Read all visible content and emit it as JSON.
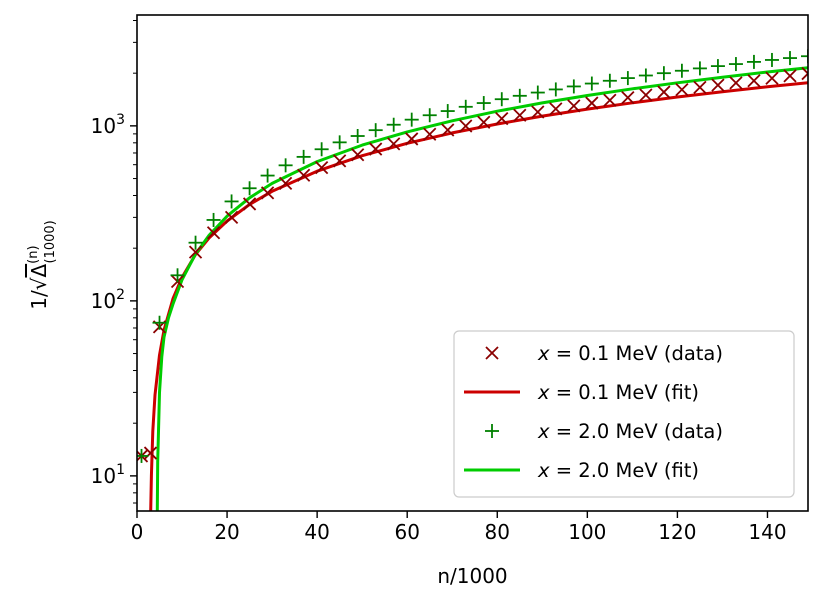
{
  "chart_data": {
    "type": "scatter",
    "x_scale": "linear",
    "y_scale": "log",
    "xlim": [
      0,
      149
    ],
    "ylim": [
      6.3,
      4300
    ],
    "xlabel": "n/1000",
    "ylabel": "1/√Δ(1000)(n)",
    "ylabel_parts": {
      "prefix": "1/",
      "symbol": "Δ",
      "sup": "(n)",
      "sub": "(1000)"
    },
    "x_ticks": [
      0,
      20,
      40,
      60,
      80,
      100,
      120,
      140
    ],
    "y_ticks": [
      {
        "value": 10,
        "base": "10",
        "exp": "1"
      },
      {
        "value": 100,
        "base": "10",
        "exp": "2"
      },
      {
        "value": 1000,
        "base": "10",
        "exp": "3"
      }
    ],
    "grid": false,
    "legend_position": "lower right",
    "series": [
      {
        "name": "x = 0.1 MeV (data)",
        "label_var": "x",
        "label_rest": " = 0.1 MeV (data)",
        "kind": "markers",
        "marker": "x",
        "color": "#8b0000",
        "x": [
          1,
          3,
          5,
          9,
          13,
          17,
          21,
          25,
          29,
          33,
          37,
          41,
          45,
          49,
          53,
          57,
          61,
          65,
          69,
          73,
          77,
          81,
          85,
          89,
          93,
          97,
          101,
          105,
          109,
          113,
          117,
          121,
          125,
          129,
          133,
          137,
          141,
          145,
          149
        ],
        "y": [
          13,
          13.5,
          71,
          129,
          190,
          245,
          300,
          358,
          414,
          469,
          522,
          577,
          631,
          684,
          737,
          789,
          842,
          895,
          947,
          998,
          1048,
          1100,
          1150,
          1200,
          1250,
          1300,
          1350,
          1400,
          1450,
          1500,
          1560,
          1610,
          1660,
          1710,
          1760,
          1810,
          1870,
          1930,
          1990
        ]
      },
      {
        "name": "x = 0.1 MeV (fit)",
        "label_var": "x",
        "label_rest": " = 0.1 MeV (fit)",
        "kind": "line",
        "color": "#cc0000",
        "x": [
          3.05,
          3.2,
          3.5,
          4,
          5,
          6,
          8,
          10,
          13,
          16,
          20,
          25,
          30,
          40,
          50,
          60,
          70,
          80,
          90,
          100,
          110,
          120,
          130,
          140,
          149
        ],
        "y": [
          6.3,
          10,
          18,
          29,
          49,
          68,
          103,
          136,
          184,
          229,
          286,
          356,
          423,
          551,
          675,
          795,
          911,
          1025,
          1137,
          1247,
          1355,
          1462,
          1568,
          1672,
          1763
        ]
      },
      {
        "name": "x = 2.0 MeV (data)",
        "label_var": "x",
        "label_rest": " = 2.0 MeV (data)",
        "kind": "markers",
        "marker": "+",
        "color": "#008000",
        "x": [
          1,
          5,
          9,
          13,
          17,
          21,
          25,
          29,
          33,
          37,
          41,
          45,
          49,
          53,
          57,
          61,
          65,
          69,
          73,
          77,
          81,
          85,
          89,
          93,
          97,
          101,
          105,
          109,
          113,
          117,
          121,
          125,
          129,
          133,
          137,
          141,
          145,
          149
        ],
        "y": [
          13,
          75,
          140,
          215,
          290,
          370,
          440,
          520,
          595,
          665,
          735,
          805,
          875,
          945,
          1015,
          1085,
          1150,
          1215,
          1285,
          1350,
          1420,
          1485,
          1550,
          1615,
          1680,
          1745,
          1810,
          1875,
          1940,
          2000,
          2065,
          2130,
          2195,
          2255,
          2320,
          2380,
          2440,
          2500
        ]
      },
      {
        "name": "x = 2.0 MeV (fit)",
        "label_var": "x",
        "label_rest": " = 2.0 MeV (fit)",
        "kind": "line",
        "color": "#00cc00",
        "x": [
          4.5,
          4.6,
          5,
          5.5,
          6,
          7,
          8,
          10,
          13,
          16,
          20,
          25,
          30,
          40,
          50,
          60,
          70,
          80,
          90,
          100,
          110,
          120,
          130,
          140,
          149
        ],
        "y": [
          6.3,
          12,
          30,
          48,
          62,
          80,
          96,
          132,
          185,
          237,
          305,
          388,
          469,
          625,
          776,
          924,
          1069,
          1212,
          1352,
          1491,
          1628,
          1763,
          1897,
          2030,
          2148
        ]
      }
    ]
  }
}
